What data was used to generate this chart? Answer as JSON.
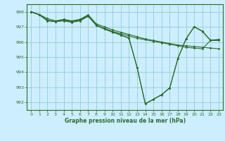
{
  "title": "Graphe pression niveau de la mer (hPa)",
  "background_color": "#cceeff",
  "grid_color": "#99cccc",
  "line_color": "#2d6b2d",
  "xlim": [
    -0.5,
    23.5
  ],
  "ylim": [
    991.5,
    998.5
  ],
  "yticks": [
    992,
    993,
    994,
    995,
    996,
    997,
    998
  ],
  "xticks": [
    0,
    1,
    2,
    3,
    4,
    5,
    6,
    7,
    8,
    9,
    10,
    11,
    12,
    13,
    14,
    15,
    16,
    17,
    18,
    19,
    20,
    21,
    22,
    23
  ],
  "series": [
    {
      "x": [
        0,
        1,
        2,
        3,
        4,
        5,
        6,
        7,
        8,
        9,
        10,
        11,
        12,
        13,
        14,
        15,
        16,
        17,
        18,
        19,
        20,
        21,
        22,
        23
      ],
      "y": [
        998.0,
        997.8,
        997.4,
        997.35,
        997.45,
        997.35,
        997.45,
        997.75,
        997.1,
        996.85,
        996.65,
        996.45,
        996.25,
        994.3,
        991.9,
        992.2,
        992.5,
        992.95,
        994.9,
        996.2,
        997.0,
        996.7,
        996.1,
        996.15
      ]
    },
    {
      "x": [
        0,
        1,
        2,
        3,
        4,
        5,
        6,
        7,
        8,
        9,
        10,
        11,
        12,
        13,
        14,
        15,
        16,
        17,
        18,
        19,
        20,
        21,
        22,
        23
      ],
      "y": [
        998.0,
        997.82,
        997.42,
        997.37,
        997.47,
        997.37,
        997.47,
        997.77,
        997.12,
        996.87,
        996.67,
        996.47,
        996.27,
        994.32,
        991.92,
        992.22,
        992.52,
        992.97,
        994.92,
        996.22,
        997.02,
        996.72,
        996.12,
        996.17
      ]
    },
    {
      "x": [
        0,
        1,
        2,
        3,
        4,
        5,
        6,
        7,
        8,
        9,
        10,
        11,
        12,
        13,
        14,
        15,
        16,
        17,
        18,
        19,
        20,
        21,
        22,
        23
      ],
      "y": [
        998.0,
        997.82,
        997.55,
        997.4,
        997.5,
        997.4,
        997.5,
        997.8,
        997.2,
        997.0,
        996.8,
        996.65,
        996.5,
        996.35,
        996.2,
        996.1,
        996.0,
        995.9,
        995.8,
        995.75,
        995.7,
        995.65,
        995.6,
        995.55
      ]
    },
    {
      "x": [
        0,
        1,
        2,
        3,
        4,
        5,
        6,
        7,
        8,
        9,
        10,
        11,
        12,
        13,
        14,
        15,
        16,
        17,
        18,
        19,
        20,
        21,
        22,
        23
      ],
      "y": [
        998.0,
        997.8,
        997.45,
        997.35,
        997.4,
        997.3,
        997.4,
        997.7,
        997.1,
        996.9,
        996.7,
        996.55,
        996.4,
        996.25,
        996.15,
        996.05,
        995.95,
        995.85,
        995.75,
        995.65,
        995.6,
        995.55,
        996.1,
        996.1
      ]
    }
  ]
}
